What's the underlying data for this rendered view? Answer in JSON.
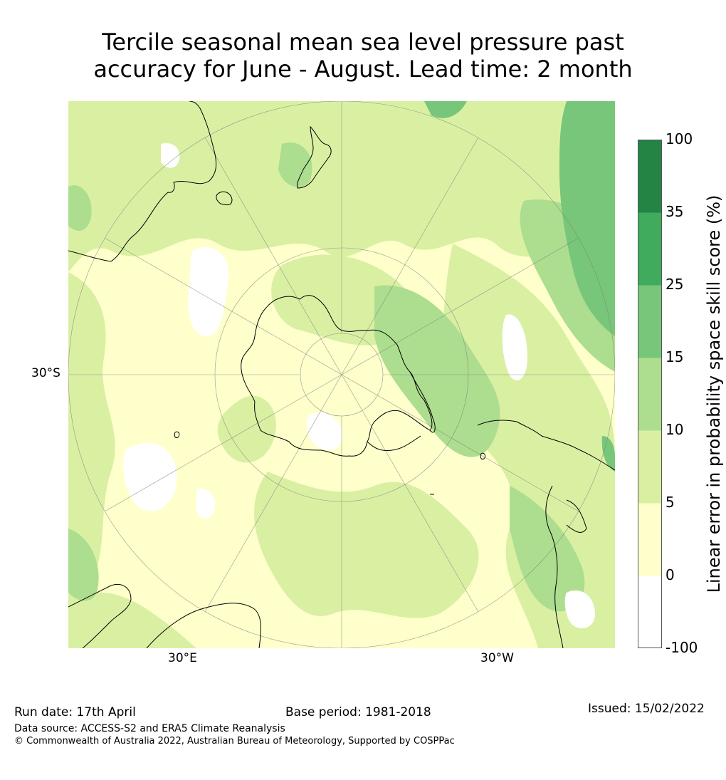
{
  "title_line1": "Tercile seasonal mean sea level pressure past",
  "title_line2": "accuracy for June - August. Lead time: 2 month",
  "chart_data": {
    "type": "heatmap",
    "projection": "south polar stereographic",
    "title": "Tercile seasonal mean sea level pressure past accuracy for June - August. Lead time: 2 month",
    "lat_labels": [
      "30°S"
    ],
    "lon_labels": [
      "30°E",
      "30°W"
    ],
    "colorbar": {
      "label": "Linear error in probability space skill score (%)",
      "ticks": [
        "-100",
        "0",
        "5",
        "10",
        "15",
        "25",
        "35",
        "100"
      ],
      "bins": [
        {
          "from": -100,
          "to": 0,
          "color": "#ffffff"
        },
        {
          "from": 0,
          "to": 5,
          "color": "#ffffcc"
        },
        {
          "from": 5,
          "to": 10,
          "color": "#d9f0a3"
        },
        {
          "from": 10,
          "to": 15,
          "color": "#addd8e"
        },
        {
          "from": 15,
          "to": 25,
          "color": "#78c679"
        },
        {
          "from": 25,
          "to": 35,
          "color": "#41ab5d"
        },
        {
          "from": 35,
          "to": 100,
          "color": "#238443"
        }
      ]
    }
  },
  "footer": {
    "run_date": "Run date: 17th April",
    "base_period": "Base period: 1981-2018",
    "issued": "Issued: 15/02/2022",
    "data_source": "Data source: ACCESS-S2 and ERA5 Climate Reanalysis",
    "copyright": "© Commonwealth of Australia 2022, Australian Bureau of Meteorology, Supported by COSPPac"
  }
}
